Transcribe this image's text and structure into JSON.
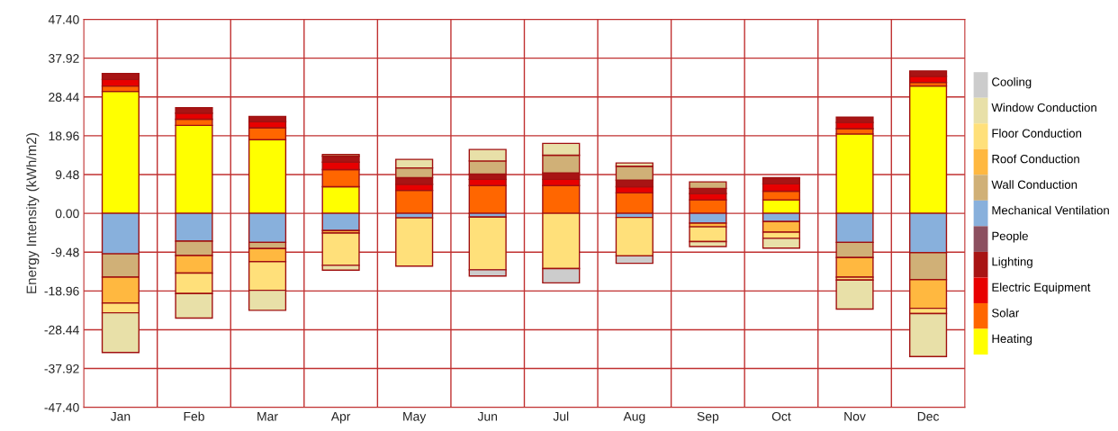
{
  "chart_data": {
    "type": "bar",
    "stacked": true,
    "ylabel": "Energy Intensity (kWh/m2)",
    "categories": [
      "Jan",
      "Feb",
      "Mar",
      "Apr",
      "May",
      "Jun",
      "Jul",
      "Aug",
      "Sep",
      "Oct",
      "Nov",
      "Dec"
    ],
    "series": [
      {
        "name": "Heating",
        "color": "#ffff00",
        "values": [
          29.8,
          21.5,
          18.0,
          6.5,
          null,
          null,
          null,
          null,
          null,
          3.3,
          19.4,
          31.1
        ]
      },
      {
        "name": "Solar",
        "color": "#ff6600",
        "values": [
          1.3,
          1.5,
          2.9,
          4.2,
          5.6,
          6.8,
          6.8,
          5.0,
          3.3,
          2.1,
          1.3,
          0.9
        ]
      },
      {
        "name": "Electric Equipment",
        "color": "#e80000",
        "values": [
          1.6,
          1.5,
          1.5,
          1.8,
          1.5,
          1.5,
          1.5,
          1.5,
          1.5,
          1.8,
          1.5,
          1.5
        ]
      },
      {
        "name": "Lighting",
        "color": "#a81414",
        "values": [
          1.5,
          1.3,
          1.3,
          1.5,
          1.6,
          1.3,
          1.6,
          1.6,
          1.3,
          1.5,
          1.3,
          1.3
        ]
      },
      {
        "name": "People",
        "color": "#8c5060",
        "values": [
          null,
          null,
          null,
          null,
          null,
          null,
          null,
          null,
          null,
          null,
          null,
          null
        ]
      },
      {
        "name": "Mechanical Ventilation",
        "color": "#88b0dc",
        "values": [
          -9.9,
          -6.8,
          -7.1,
          -4.2,
          -1.1,
          -0.9,
          null,
          -1.0,
          -2.4,
          -2.0,
          -7.1,
          -9.6
        ]
      },
      {
        "name": "Wall Conduction",
        "color": "#d0b077",
        "values": [
          -5.7,
          -3.5,
          -1.5,
          0.4,
          2.4,
          3.2,
          4.3,
          3.4,
          1.6,
          null,
          -3.7,
          -6.6
        ]
      },
      {
        "name": "Roof Conduction",
        "color": "#ffb840",
        "values": [
          -6.3,
          -4.3,
          -3.2,
          -0.6,
          null,
          null,
          null,
          null,
          -0.9,
          -2.6,
          -4.8,
          -7.0
        ]
      },
      {
        "name": "Floor Conduction",
        "color": "#ffe07a",
        "values": [
          -2.4,
          -5.0,
          -7.0,
          -7.9,
          -11.8,
          -12.9,
          -13.5,
          -9.4,
          -3.6,
          -1.5,
          -0.7,
          -1.3
        ]
      },
      {
        "name": "Window Conduction",
        "color": "#e8e0a8",
        "values": [
          -9.7,
          -6.0,
          -4.9,
          -1.2,
          2.1,
          2.8,
          2.9,
          0.8,
          -1.2,
          -2.4,
          -7.1,
          -10.5
        ]
      },
      {
        "name": "Cooling",
        "color": "#cccccc",
        "values": [
          null,
          null,
          null,
          null,
          null,
          -1.5,
          -3.5,
          -1.8,
          null,
          null,
          null,
          null
        ]
      }
    ],
    "ylim": [
      -47.4,
      47.4
    ],
    "yticks": [
      {
        "value": -47.4,
        "label": "-47.40"
      },
      {
        "value": -37.92,
        "label": "-37.92"
      },
      {
        "value": -28.44,
        "label": "-28.44"
      },
      {
        "value": -18.96,
        "label": "-18.96"
      },
      {
        "value": -9.48,
        "label": "-9.48"
      },
      {
        "value": 0,
        "label": "0.00"
      },
      {
        "value": 9.48,
        "label": "9.48"
      },
      {
        "value": 18.96,
        "label": "18.96"
      },
      {
        "value": 28.44,
        "label": "28.44"
      },
      {
        "value": 37.92,
        "label": "37.92"
      },
      {
        "value": 47.4,
        "label": "47.40"
      }
    ],
    "grid": true,
    "legend": "right"
  }
}
